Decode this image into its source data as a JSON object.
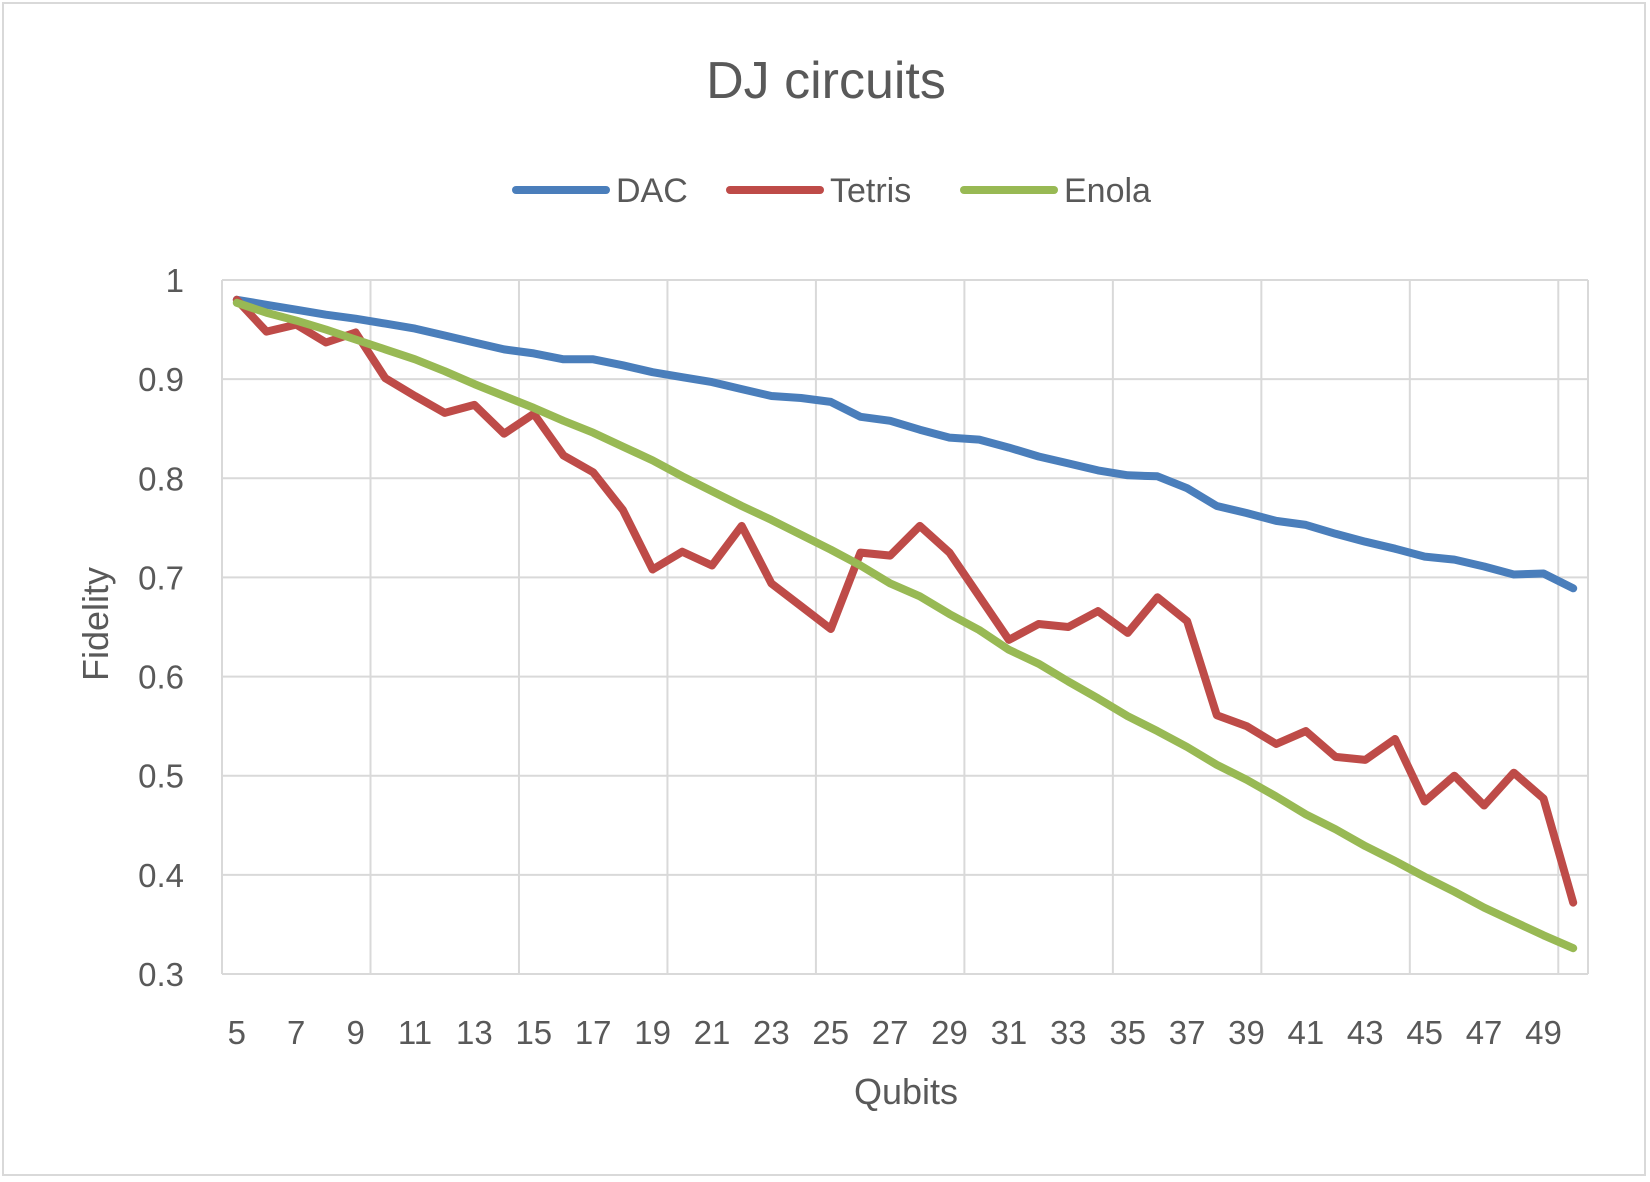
{
  "chart_data": {
    "type": "line",
    "title": "DJ circuits",
    "xlabel": "Qubits",
    "ylabel": "Fidelity",
    "x": [
      5,
      6,
      7,
      8,
      9,
      10,
      11,
      12,
      13,
      14,
      15,
      16,
      17,
      18,
      19,
      20,
      21,
      22,
      23,
      24,
      25,
      26,
      27,
      28,
      29,
      30,
      31,
      32,
      33,
      34,
      35,
      36,
      37,
      38,
      39,
      40,
      41,
      42,
      43,
      44,
      45,
      46,
      47,
      48,
      49,
      50
    ],
    "x_tick_labels": [
      "5",
      "7",
      "9",
      "11",
      "13",
      "15",
      "17",
      "19",
      "21",
      "23",
      "25",
      "27",
      "29",
      "31",
      "33",
      "35",
      "37",
      "39",
      "41",
      "43",
      "45",
      "47",
      "49"
    ],
    "y_tick_labels": [
      "0.3",
      "0.4",
      "0.5",
      "0.6",
      "0.7",
      "0.8",
      "0.9",
      "1"
    ],
    "ylim": [
      0.3,
      1.0
    ],
    "grid": true,
    "legend_position": "top",
    "series": [
      {
        "name": "DAC",
        "color": "#4a7ebb",
        "values": [
          0.98,
          0.975,
          0.97,
          0.965,
          0.961,
          0.956,
          0.951,
          0.944,
          0.937,
          0.93,
          0.926,
          0.92,
          0.92,
          0.914,
          0.907,
          0.902,
          0.897,
          0.89,
          0.883,
          0.881,
          0.877,
          0.862,
          0.858,
          0.849,
          0.841,
          0.839,
          0.831,
          0.822,
          0.815,
          0.808,
          0.803,
          0.802,
          0.79,
          0.772,
          0.765,
          0.757,
          0.753,
          0.744,
          0.736,
          0.729,
          0.721,
          0.718,
          0.711,
          0.703,
          0.704,
          0.689
        ]
      },
      {
        "name": "Tetris",
        "color": "#be4b48",
        "values": [
          0.98,
          0.948,
          0.955,
          0.937,
          0.947,
          0.901,
          0.883,
          0.866,
          0.874,
          0.845,
          0.865,
          0.823,
          0.806,
          0.768,
          0.708,
          0.726,
          0.712,
          0.752,
          0.694,
          0.671,
          0.648,
          0.725,
          0.722,
          0.752,
          0.725,
          0.681,
          0.637,
          0.653,
          0.65,
          0.666,
          0.644,
          0.68,
          0.656,
          0.561,
          0.55,
          0.532,
          0.545,
          0.519,
          0.516,
          0.537,
          0.474,
          0.5,
          0.47,
          0.503,
          0.477,
          0.372
        ]
      },
      {
        "name": "Enola",
        "color": "#98b954",
        "values": [
          0.977,
          0.967,
          0.959,
          0.95,
          0.94,
          0.93,
          0.92,
          0.908,
          0.895,
          0.883,
          0.871,
          0.858,
          0.846,
          0.832,
          0.818,
          0.802,
          0.787,
          0.772,
          0.758,
          0.743,
          0.728,
          0.712,
          0.694,
          0.681,
          0.663,
          0.647,
          0.627,
          0.613,
          0.595,
          0.578,
          0.56,
          0.545,
          0.529,
          0.511,
          0.496,
          0.479,
          0.461,
          0.446,
          0.429,
          0.414,
          0.398,
          0.383,
          0.367,
          0.353,
          0.339,
          0.326
        ]
      }
    ]
  }
}
